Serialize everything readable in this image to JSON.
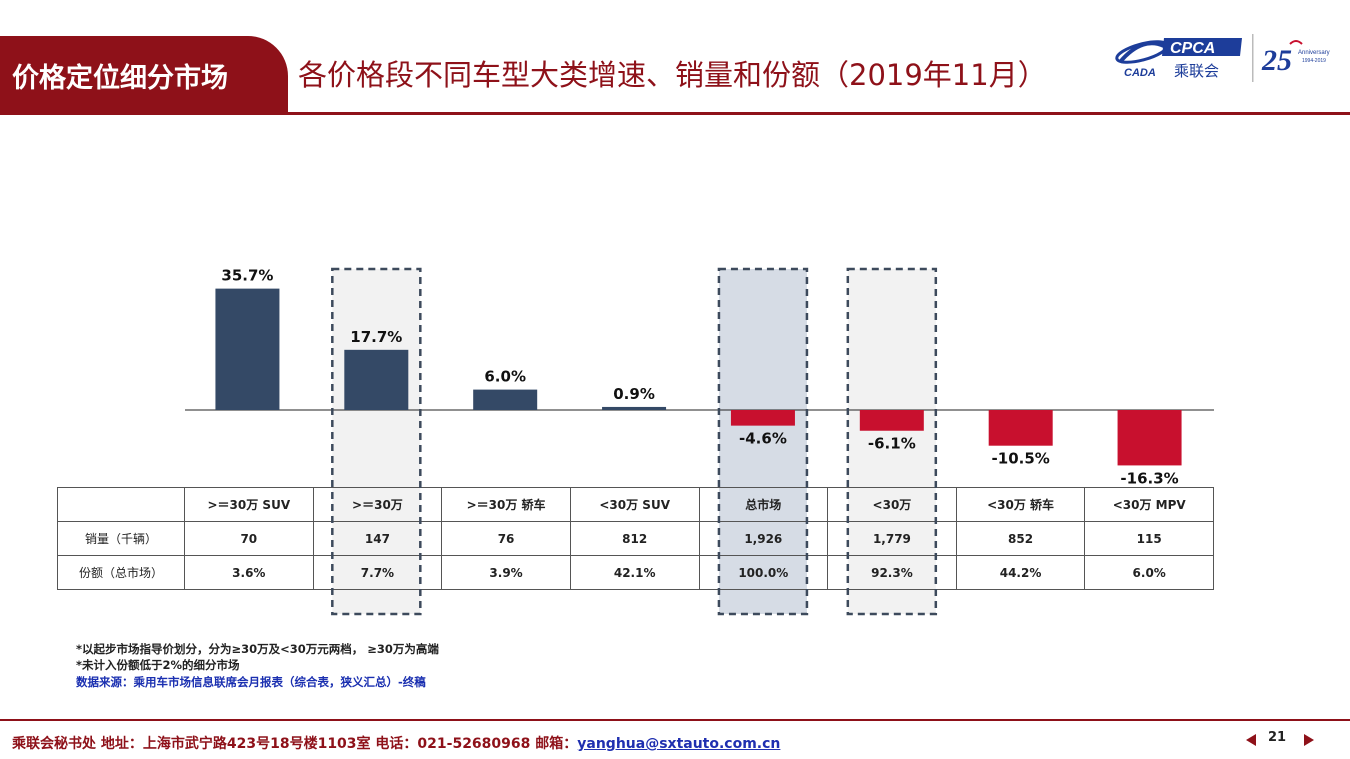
{
  "header": {
    "section_tab": "价格定位细分市场",
    "title": "各价格段不同车型大类增速、销量和份额（2019年11月）"
  },
  "logo": {
    "cpca_text": "CPCA",
    "org_name": "乘联会",
    "cada_text": "CADA",
    "anniversary_number": "25",
    "anniversary_label": "Anniversary",
    "anniversary_years": "1994-2019"
  },
  "colors": {
    "brand": "#8e1119",
    "positive_bar": "#344966",
    "negative_bar": "#c8102e",
    "highlight_grey": "#f2f2f2",
    "highlight_blue": "#d6dce5",
    "source_text": "#1a2fb0"
  },
  "chart_data": {
    "type": "bar",
    "categories": [
      ">=30万 SUV",
      ">=30万",
      ">=30万 轿车",
      "<30万 SUV",
      "总市场",
      "<30万",
      "<30万 轿车",
      "<30万 MPV"
    ],
    "values": [
      35.7,
      17.7,
      6.0,
      0.9,
      -4.6,
      -6.1,
      -10.5,
      -16.3
    ],
    "value_labels": [
      "35.7%",
      "17.7%",
      "6.0%",
      "0.9%",
      "-4.6%",
      "-6.1%",
      "-10.5%",
      "-16.3%"
    ],
    "unit": "%",
    "ylim": [
      -20,
      40
    ],
    "grid": false,
    "legend": "none",
    "highlighted_categories": [
      ">=30万",
      "总市场",
      "<30万"
    ],
    "table": {
      "columns": [
        ">＝30万 SUV",
        ">＝30万",
        ">＝30万 轿车",
        "<30万 SUV",
        "总市场",
        "<30万",
        "<30万 轿车",
        "<30万 MPV"
      ],
      "rows": [
        {
          "label": "销量（千辆）",
          "values": [
            "70",
            "147",
            "76",
            "812",
            "1,926",
            "1,779",
            "852",
            "115"
          ]
        },
        {
          "label": "份额（总市场）",
          "values": [
            "3.6%",
            "7.7%",
            "3.9%",
            "42.1%",
            "100.0%",
            "92.3%",
            "44.2%",
            "6.0%"
          ]
        }
      ]
    }
  },
  "notes": {
    "note1": "*以起步市场指导价划分，分为≥30万及<30万元两档， ≥30万为高端",
    "note2": "*未计入份额低于2%的细分市场",
    "source": "数据来源：乘用车市场信息联席会月报表（综合表，狭义汇总）-终稿"
  },
  "footer": {
    "text": "乘联会秘书处   地址：上海市武宁路423号18号楼1103室  电话：021-52680968   邮箱：",
    "email": "yanghua@sxtauto.com.cn",
    "page_number": "21"
  }
}
